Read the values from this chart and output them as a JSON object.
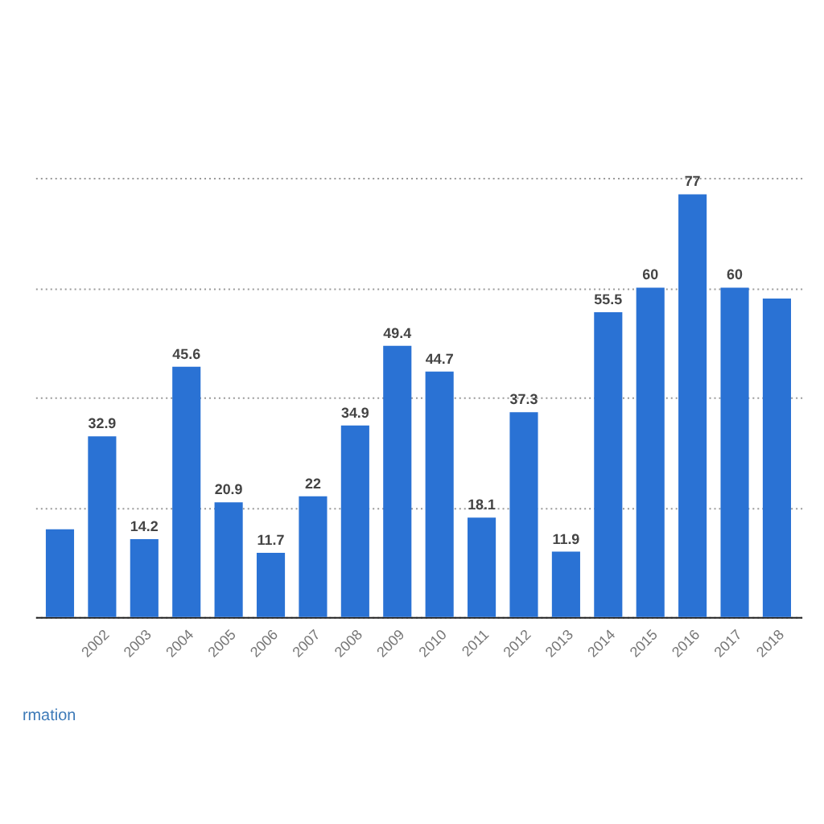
{
  "chart_data": {
    "type": "bar",
    "categories": [
      null,
      "2002",
      "2003",
      "2004",
      "2005",
      "2006",
      "2007",
      "2008",
      "2009",
      "2010",
      "2011",
      "2012",
      "2013",
      "2014",
      "2015",
      "2016",
      "2017",
      "2018"
    ],
    "values": [
      16,
      32.9,
      14.2,
      45.6,
      20.9,
      11.7,
      22,
      34.9,
      49.4,
      44.7,
      18.1,
      37.3,
      11.9,
      55.5,
      60,
      77,
      60,
      58
    ],
    "value_labels": [
      null,
      "32.9",
      "14.2",
      "45.6",
      "20.9",
      "11.7",
      "22",
      "34.9",
      "49.4",
      "44.7",
      "18.1",
      "37.3",
      "11.9",
      "55.5",
      "60",
      "77",
      "60",
      null
    ],
    "color": "#2a72d4",
    "ylim": [
      0,
      80
    ],
    "yticks": [
      {
        "value": 0,
        "label": null
      },
      {
        "value": 20,
        "label": null
      },
      {
        "value": 40,
        "label": null
      },
      {
        "value": 60,
        "label": null
      },
      {
        "value": 80,
        "label": null
      }
    ],
    "grid": "y",
    "tick_labels": "x",
    "annotations": [
      "rmation"
    ]
  }
}
